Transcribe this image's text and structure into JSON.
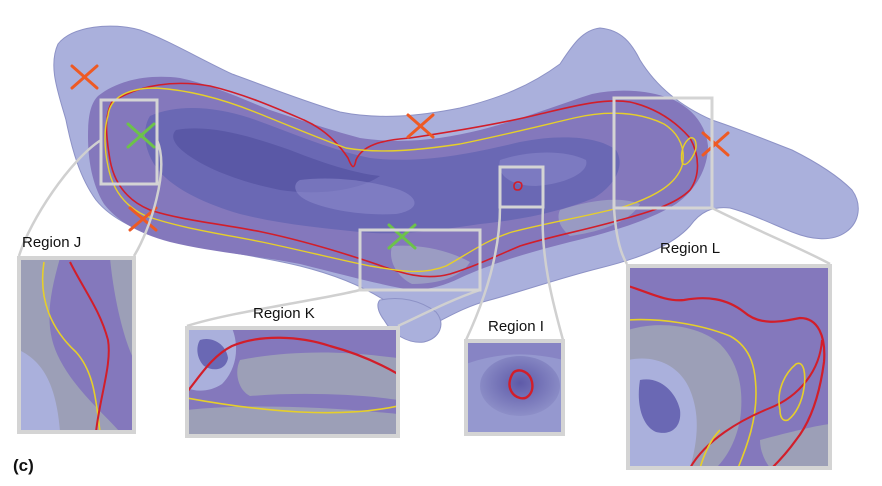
{
  "figure": {
    "panel_label": "(c)",
    "regions": [
      {
        "id": "J",
        "label": "Region J"
      },
      {
        "id": "K",
        "label": "Region K"
      },
      {
        "id": "I",
        "label": "Region I"
      },
      {
        "id": "L",
        "label": "Region L"
      }
    ],
    "markers": {
      "orange_count": 4,
      "green_count": 2
    },
    "colors": {
      "surface": "#aab0dc",
      "surface_edge": "#8a90c4",
      "inner_band": "#8478bc",
      "cavity": "#6a68b4",
      "cavity_deep": "#5a58a6",
      "red_curve": "#d21e2a",
      "yellow_curve": "#e6cf2a",
      "orange_marker": "#ee5a24",
      "green_marker": "#6cc24a",
      "frame": "#d2d2d2",
      "inset_gray": "#9c9fb7"
    }
  }
}
